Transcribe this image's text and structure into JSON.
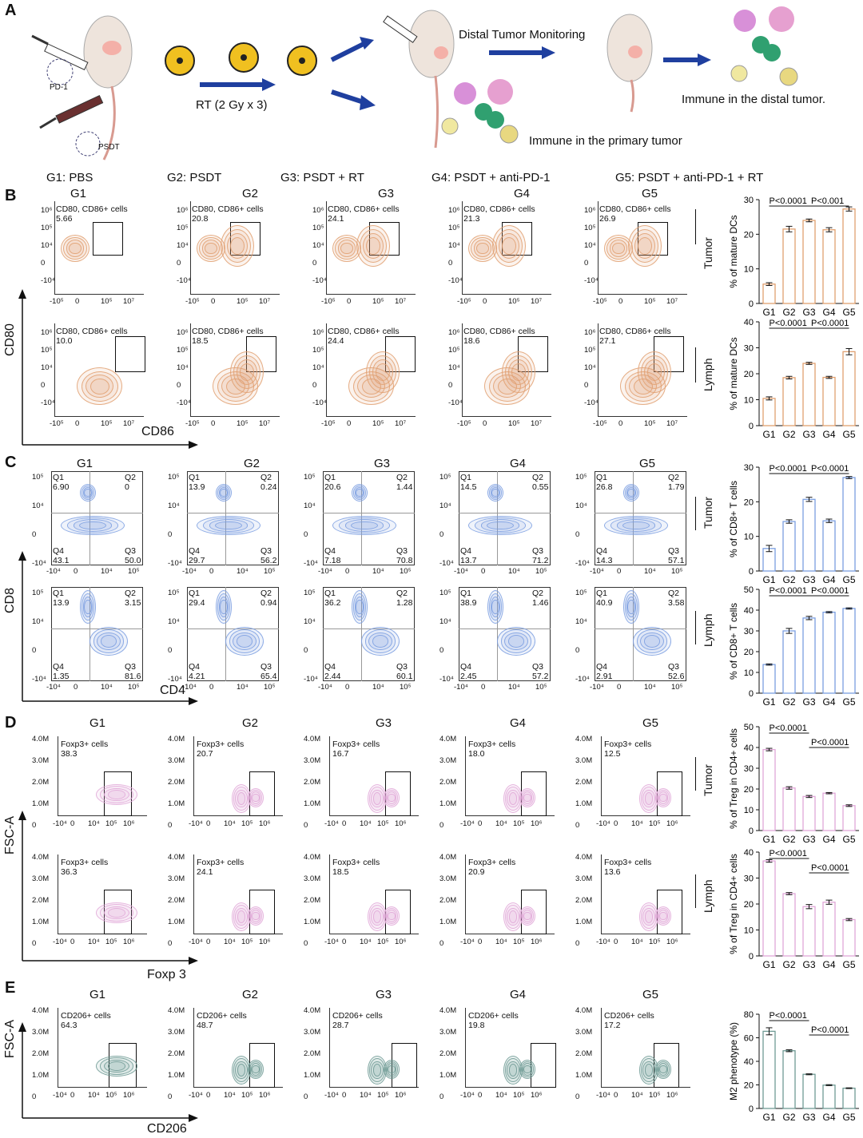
{
  "panel_letters": {
    "a": "A",
    "b": "B",
    "c": "C",
    "d": "D",
    "e": "E"
  },
  "schematic": {
    "pd1_label": "PD-1",
    "psdt_label": "PSDT",
    "rt_label": "RT (2 Gy x 3)",
    "distal_monitoring": "Distal Tumor Monitoring",
    "immune_primary": "Immune in the primary tumor",
    "immune_distal": "Immune in the distal tumor."
  },
  "group_legend": [
    "G1: PBS",
    "G2: PSDT",
    "G3: PSDT + RT",
    "G4: PSDT + anti-PD-1",
    "G5: PSDT + anti-PD-1 + RT"
  ],
  "groups": [
    "G1",
    "G2",
    "G3",
    "G4",
    "G5"
  ],
  "tissues": {
    "tumor": "Tumor",
    "lymph": "Lymph"
  },
  "panel_b": {
    "y_axis": "CD80",
    "x_axis": "CD86",
    "gate_label": "CD80, CD86+ cells",
    "y_ticks": [
      "10⁶",
      "10⁵",
      "10⁴",
      "0",
      "-10⁴"
    ],
    "x_ticks": [
      "-10⁵",
      "0",
      "10⁵",
      "10⁷"
    ],
    "tumor_values": [
      "5.66",
      "20.8",
      "24.1",
      "21.3",
      "26.9"
    ],
    "lymph_values": [
      "10.0",
      "18.5",
      "24.4",
      "18.6",
      "27.1"
    ],
    "color": "#e0a070"
  },
  "panel_c": {
    "y_axis": "CD8",
    "x_axis": "CD4",
    "y_ticks": [
      "10⁵",
      "10⁴",
      "0",
      "-10⁴"
    ],
    "x_ticks": [
      "-10⁴",
      "0",
      "10⁴",
      "10⁵"
    ],
    "tumor": [
      {
        "q1": "6.90",
        "q2": "0",
        "q3": "50.0",
        "q4": "43.1"
      },
      {
        "q1": "13.9",
        "q2": "0.24",
        "q3": "56.2",
        "q4": "29.7"
      },
      {
        "q1": "20.6",
        "q2": "1.44",
        "q3": "70.8",
        "q4": "7.18"
      },
      {
        "q1": "14.5",
        "q2": "0.55",
        "q3": "71.2",
        "q4": "13.7"
      },
      {
        "q1": "26.8",
        "q2": "1.79",
        "q3": "57.1",
        "q4": "14.3"
      }
    ],
    "lymph": [
      {
        "q1": "13.9",
        "q2": "3.15",
        "q3": "81.6",
        "q4": "1.35"
      },
      {
        "q1": "29.4",
        "q2": "0.94",
        "q3": "65.4",
        "q4": "4.21"
      },
      {
        "q1": "36.2",
        "q2": "1.28",
        "q3": "60.1",
        "q4": "2.44"
      },
      {
        "q1": "38.9",
        "q2": "1.46",
        "q3": "57.2",
        "q4": "2.45"
      },
      {
        "q1": "40.9",
        "q2": "3.58",
        "q3": "52.6",
        "q4": "2.91"
      }
    ],
    "color": "#7b9fe0"
  },
  "panel_d": {
    "y_axis": "FSC-A",
    "x_axis": "Foxp 3",
    "gate_label": "Foxp3+ cells",
    "y_ticks": [
      "4.0M",
      "3.0M",
      "2.0M",
      "1.0M",
      "0"
    ],
    "x_ticks": [
      "-10⁴",
      "0",
      "10⁴",
      "10⁵",
      "10⁶"
    ],
    "tumor_values": [
      "38.3",
      "20.7",
      "16.7",
      "18.0",
      "12.5"
    ],
    "lymph_values": [
      "36.3",
      "24.1",
      "18.5",
      "20.9",
      "13.6"
    ],
    "color": "#e0a8d8"
  },
  "panel_e": {
    "y_axis": "FSC-A",
    "x_axis": "CD206",
    "gate_label": "CD206+ cells",
    "y_ticks": [
      "4.0M",
      "3.0M",
      "2.0M",
      "1.0M",
      "0"
    ],
    "x_ticks": [
      "-10⁴",
      "0",
      "10⁴",
      "10⁵",
      "10⁶"
    ],
    "values": [
      "64.3",
      "48.7",
      "28.7",
      "19.8",
      "17.2"
    ],
    "color": "#6f9a94"
  },
  "chart_data": [
    {
      "type": "bar",
      "id": "b_tumor",
      "categories": [
        "G1",
        "G2",
        "G3",
        "G4",
        "G5"
      ],
      "values": [
        5.6,
        21.5,
        24,
        21.3,
        27.3
      ],
      "errors": [
        0.4,
        0.8,
        0.4,
        0.6,
        0.6
      ],
      "ylabel": "% of mature DCs",
      "ylim": [
        0,
        30
      ],
      "yticks": [
        0,
        10,
        20,
        30
      ],
      "annotations": [
        "P<0.0001",
        "P<0.001"
      ],
      "color": "#e0a070"
    },
    {
      "type": "bar",
      "id": "b_lymph",
      "categories": [
        "G1",
        "G2",
        "G3",
        "G4",
        "G5"
      ],
      "values": [
        10.5,
        18.5,
        24,
        18.6,
        28.5
      ],
      "errors": [
        0.6,
        0.5,
        0.4,
        0.4,
        1.2
      ],
      "ylabel": "% of mature DCs",
      "ylim": [
        0,
        40
      ],
      "yticks": [
        0,
        10,
        20,
        30,
        40
      ],
      "annotations": [
        "P<0.0001",
        "P<0.0001"
      ],
      "color": "#e0a070"
    },
    {
      "type": "bar",
      "id": "c_tumor",
      "categories": [
        "G1",
        "G2",
        "G3",
        "G4",
        "G5"
      ],
      "values": [
        6.5,
        14.3,
        20.7,
        14.5,
        27
      ],
      "errors": [
        0.9,
        0.5,
        0.6,
        0.5,
        0.3
      ],
      "ylabel": "% of CD8+ T cells",
      "ylim": [
        0,
        30
      ],
      "yticks": [
        0,
        10,
        20,
        30
      ],
      "annotations": [
        "P<0.0001",
        "P<0.0001"
      ],
      "color": "#7b9fe0"
    },
    {
      "type": "bar",
      "id": "c_lymph",
      "categories": [
        "G1",
        "G2",
        "G3",
        "G4",
        "G5"
      ],
      "values": [
        13.8,
        30,
        36.2,
        39,
        40.8
      ],
      "errors": [
        0.3,
        1.2,
        0.8,
        0.3,
        0.3
      ],
      "ylabel": "% of CD8+ T cells",
      "ylim": [
        0,
        50
      ],
      "yticks": [
        0,
        10,
        20,
        30,
        40,
        50
      ],
      "annotations": [
        "P<0.0001",
        "P<0.0001"
      ],
      "color": "#7b9fe0"
    },
    {
      "type": "bar",
      "id": "d_tumor",
      "categories": [
        "G1",
        "G2",
        "G3",
        "G4",
        "G5"
      ],
      "values": [
        39,
        20.5,
        16.4,
        18,
        12
      ],
      "errors": [
        0.6,
        0.6,
        0.5,
        0.3,
        0.4
      ],
      "ylabel": "% of Treg in CD4+ cells",
      "ylim": [
        0,
        50
      ],
      "yticks": [
        0,
        10,
        20,
        30,
        40,
        50
      ],
      "annotations": [
        "P<0.0001",
        "P<0.0001"
      ],
      "color": "#e0a8d8"
    },
    {
      "type": "bar",
      "id": "d_lymph",
      "categories": [
        "G1",
        "G2",
        "G3",
        "G4",
        "G5"
      ],
      "values": [
        36.6,
        24,
        19,
        20.7,
        14
      ],
      "errors": [
        0.5,
        0.4,
        0.8,
        0.8,
        0.4
      ],
      "ylabel": "% of Treg in CD4+ cells",
      "ylim": [
        0,
        40
      ],
      "yticks": [
        0,
        10,
        20,
        30,
        40
      ],
      "annotations": [
        "P<0.0001",
        "P<0.0001"
      ],
      "color": "#e0a8d8"
    },
    {
      "type": "bar",
      "id": "e_bar",
      "categories": [
        "G1",
        "G2",
        "G3",
        "G4",
        "G5"
      ],
      "values": [
        65.5,
        49,
        29,
        19.8,
        17.2
      ],
      "errors": [
        3,
        0.8,
        0.4,
        0.4,
        0.3
      ],
      "ylabel": "M2 phenotype (%)",
      "ylim": [
        0,
        80
      ],
      "yticks": [
        0,
        20,
        40,
        60,
        80
      ],
      "annotations": [
        "P<0.0001",
        "P<0.0001"
      ],
      "color": "#6f9a94"
    }
  ]
}
